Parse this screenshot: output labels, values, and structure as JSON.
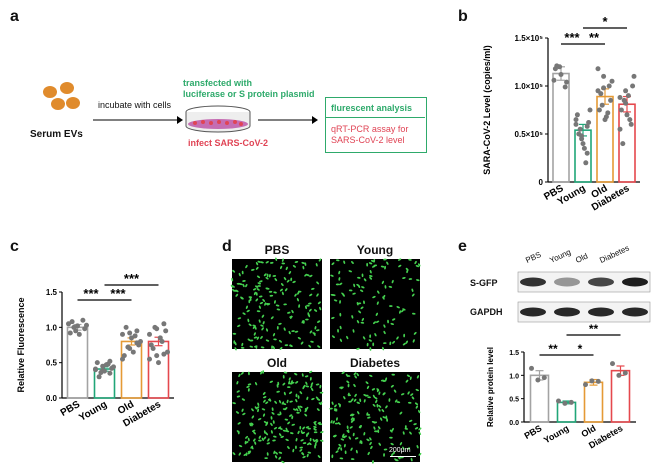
{
  "panels": {
    "a": "a",
    "b": "b",
    "c": "c",
    "d": "d",
    "e": "e"
  },
  "schematic": {
    "serum_label": "Serum EVs",
    "incubate_label": "incubate with cells",
    "transfected_line1": "transfected with",
    "transfected_line2": "luciferase or S protein plasmid",
    "infect_label": "infect SARS-CoV-2",
    "box_analysis": "flurescent analysis",
    "box_qrt_line1": "qRT-PCR assay for",
    "box_qrt_line2": "SARS-CoV-2 level",
    "colors": {
      "ev": "#e08b2c",
      "green_text": "#2eaa6b",
      "red_text": "#e04455",
      "dish": "#c56db3"
    }
  },
  "chart_data": [
    {
      "panel": "b",
      "type": "bar",
      "categories": [
        "PBS",
        "Young",
        "Old",
        "Diabetes"
      ],
      "values": [
        113000,
        54000,
        89000,
        81000
      ],
      "errors": [
        7000,
        6000,
        8000,
        8000
      ],
      "points": [
        [
          106000,
          120000,
          99000,
          118000,
          112000,
          104000,
          121000
        ],
        [
          65000,
          45000,
          30000,
          70000,
          40000,
          62000,
          50000,
          35000,
          75000,
          55000,
          20000,
          60000,
          48000,
          58000
        ],
        [
          95000,
          110000,
          100000,
          75000,
          65000,
          85000,
          92000,
          68000,
          105000,
          80000,
          72000,
          118000,
          98000
        ],
        [
          88000,
          95000,
          60000,
          75000,
          70000,
          100000,
          40000,
          90000,
          110000,
          85000,
          65000,
          55000,
          82000
        ]
      ],
      "colors": [
        "#a3a3a3",
        "#20a678",
        "#e59a35",
        "#e5484d"
      ],
      "ylabel": "SARA-CoV-2 Level (copies/ml)",
      "ylim": [
        0,
        150000
      ],
      "yticks": [
        "0",
        "0.5×10⁵",
        "1.0×10⁵",
        "1.5×10⁵"
      ],
      "significance": [
        {
          "label": "***"
        },
        {
          "label": "**"
        },
        {
          "label": "*"
        }
      ]
    },
    {
      "panel": "c",
      "type": "bar",
      "categories": [
        "PBS",
        "Young",
        "Old",
        "Diabetes"
      ],
      "values": [
        1.0,
        0.41,
        0.8,
        0.8
      ],
      "errors": [
        0.04,
        0.03,
        0.05,
        0.06
      ],
      "points": [
        [
          1.05,
          0.95,
          1.1,
          0.92,
          1.02,
          0.98,
          1.08,
          0.9,
          1.03,
          1.0
        ],
        [
          0.4,
          0.45,
          0.35,
          0.5,
          0.38,
          0.42,
          0.3,
          0.47,
          0.44,
          0.36,
          0.48,
          0.41,
          0.39,
          0.52
        ],
        [
          0.9,
          0.7,
          0.95,
          0.6,
          0.85,
          0.75,
          1.0,
          0.65,
          0.8,
          0.72,
          0.88,
          0.55,
          0.92,
          0.78
        ],
        [
          0.9,
          0.6,
          1.05,
          0.75,
          0.5,
          0.95,
          0.7,
          0.85,
          0.65,
          1.0,
          0.8,
          0.55,
          0.98,
          0.62
        ]
      ],
      "colors": [
        "#a3a3a3",
        "#20a678",
        "#e59a35",
        "#e5484d"
      ],
      "ylabel": "Relative Fluorescence",
      "ylim": [
        0,
        1.5
      ],
      "yticks": [
        "0.0",
        "0.5",
        "1.0",
        "1.5"
      ],
      "significance": [
        {
          "label": "***"
        },
        {
          "label": "***"
        },
        {
          "label": "***"
        }
      ]
    },
    {
      "panel": "e",
      "type": "bar",
      "categories": [
        "PBS",
        "Young",
        "Old",
        "Diabetes"
      ],
      "values": [
        1.0,
        0.42,
        0.85,
        1.1
      ],
      "errors": [
        0.1,
        0.03,
        0.06,
        0.1
      ],
      "points": [
        [
          1.15,
          0.9,
          0.95
        ],
        [
          0.45,
          0.4,
          0.42
        ],
        [
          0.8,
          0.88,
          0.87
        ],
        [
          1.25,
          1.0,
          1.05
        ]
      ],
      "colors": [
        "#a3a3a3",
        "#20a678",
        "#e59a35",
        "#e5484d"
      ],
      "ylabel": "Relative protein level",
      "ylim": [
        0,
        1.5
      ],
      "yticks": [
        "0.0",
        "0.5",
        "1.0",
        "1.5"
      ],
      "significance": [
        {
          "label": "**"
        },
        {
          "label": "*"
        },
        {
          "label": "**"
        }
      ]
    }
  ],
  "microscopy": {
    "labels": [
      "PBS",
      "Young",
      "Old",
      "Diabetes"
    ],
    "scale_bar": "200μm",
    "cell_color": "#44d04f"
  },
  "western": {
    "lanes": [
      "PBS",
      "Young",
      "Old",
      "Diabetes"
    ],
    "rows": [
      {
        "label": "S-GFP",
        "intensity": [
          0.85,
          0.35,
          0.75,
          0.95
        ]
      },
      {
        "label": "GAPDH",
        "intensity": [
          0.9,
          0.9,
          0.9,
          0.9
        ]
      }
    ]
  }
}
